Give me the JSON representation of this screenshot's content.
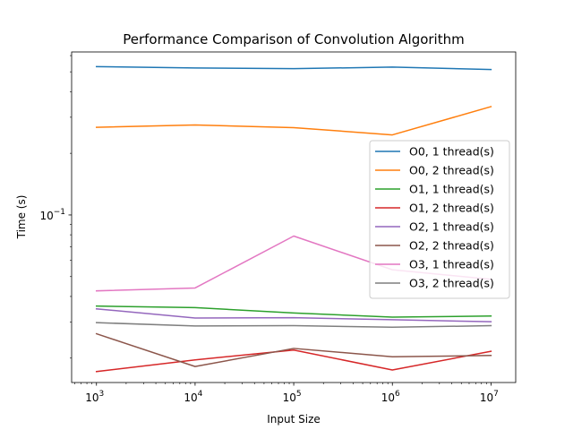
{
  "chart_data": {
    "type": "line",
    "title": "Performance Comparison of Convolution Algorithm",
    "xlabel": "Input Size",
    "ylabel": "Time (s)",
    "xscale": "log",
    "yscale": "log",
    "xlim": [
      560,
      17800000
    ],
    "ylim": [
      0.0152,
      0.625
    ],
    "grid": false,
    "legend_position": "center-right",
    "x": [
      1000,
      10000,
      100000,
      1000000,
      10000000
    ],
    "x_tick_labels": [
      {
        "base": "10",
        "exp": "3"
      },
      {
        "base": "10",
        "exp": "4"
      },
      {
        "base": "10",
        "exp": "5"
      },
      {
        "base": "10",
        "exp": "6"
      },
      {
        "base": "10",
        "exp": "7"
      }
    ],
    "y_tick_labels": [
      {
        "value": 0.1,
        "base": "10",
        "exp": "−1"
      }
    ],
    "series": [
      {
        "name": "O0, 1 thread(s)",
        "color": "#1f77b4",
        "values": [
          0.53,
          0.522,
          0.518,
          0.527,
          0.513
        ]
      },
      {
        "name": "O0, 2 thread(s)",
        "color": "#ff7f0e",
        "values": [
          0.268,
          0.275,
          0.267,
          0.246,
          0.338
        ]
      },
      {
        "name": "O1, 1 thread(s)",
        "color": "#2ca02c",
        "values": [
          0.0359,
          0.0353,
          0.0332,
          0.0317,
          0.0321
        ]
      },
      {
        "name": "O1, 2 thread(s)",
        "color": "#d62728",
        "values": [
          0.0172,
          0.0196,
          0.0219,
          0.0175,
          0.0216
        ]
      },
      {
        "name": "O2, 1 thread(s)",
        "color": "#9467bd",
        "values": [
          0.0348,
          0.0314,
          0.0315,
          0.0308,
          0.0301
        ]
      },
      {
        "name": "O2, 2 thread(s)",
        "color": "#8c564b",
        "values": [
          0.0263,
          0.0182,
          0.0223,
          0.0203,
          0.0206
        ]
      },
      {
        "name": "O3, 1 thread(s)",
        "color": "#e377c2",
        "values": [
          0.0426,
          0.044,
          0.0789,
          0.054,
          0.0485
        ]
      },
      {
        "name": "O3, 2 thread(s)",
        "color": "#7f7f7f",
        "values": [
          0.0298,
          0.0287,
          0.0288,
          0.0283,
          0.0288
        ]
      }
    ]
  }
}
